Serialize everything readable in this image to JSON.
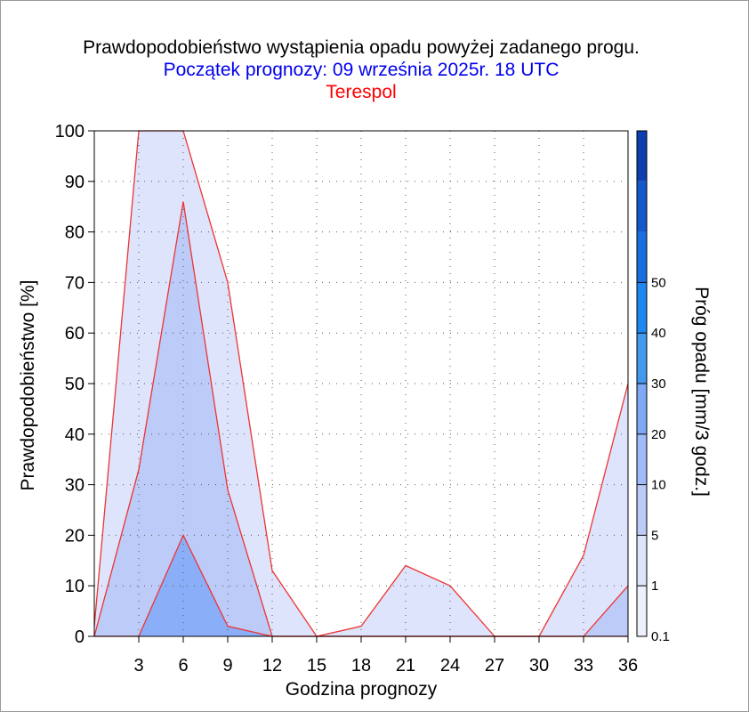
{
  "header": {
    "title": "Prawdopodobieństwo wystąpienia opadu powyżej zadanego progu.",
    "subtitle": "Początek prognozy: 09 września 2025r. 18 UTC",
    "location": "Terespol"
  },
  "colors": {
    "area_fills": [
      "#dde4fb",
      "#bccbf7",
      "#8aaef7"
    ],
    "boundary_line": "#ee3333",
    "colorbar": [
      "#eef1fd",
      "#dde4fb",
      "#bccbf7",
      "#9fbcf8",
      "#7fa8f5",
      "#4499ee",
      "#1e88f0",
      "#1a6fe0",
      "#1458cc",
      "#0d3fb0"
    ]
  },
  "chart_data": {
    "type": "area",
    "xlabel": "Godzina prognozy",
    "ylabel": "Prawdopodobieństwo [%]",
    "colorbar_label": "Próg opadu [mm/3 godz.]",
    "xlim": [
      0,
      36
    ],
    "ylim": [
      0,
      100
    ],
    "x_ticks": [
      3,
      6,
      9,
      12,
      15,
      18,
      21,
      24,
      27,
      30,
      33,
      36
    ],
    "y_ticks": [
      0,
      10,
      20,
      30,
      40,
      50,
      60,
      70,
      80,
      90,
      100
    ],
    "grid": true,
    "x": [
      0,
      3,
      6,
      9,
      12,
      15,
      18,
      21,
      24,
      27,
      30,
      33,
      36
    ],
    "series": [
      {
        "name": "0.1",
        "values": [
          2,
          100,
          100,
          70,
          13,
          0,
          2,
          14,
          10,
          0,
          0,
          16,
          50
        ]
      },
      {
        "name": "1",
        "values": [
          0,
          33,
          86,
          29,
          0,
          0,
          0,
          0,
          0,
          0,
          0,
          0,
          10
        ]
      },
      {
        "name": "5",
        "values": [
          0,
          0,
          20,
          2,
          0,
          0,
          0,
          0,
          0,
          0,
          0,
          0,
          0
        ]
      }
    ],
    "colorbar_ticks": [
      "0.1",
      "1",
      "5",
      "10",
      "20",
      "30",
      "40",
      "50"
    ]
  }
}
